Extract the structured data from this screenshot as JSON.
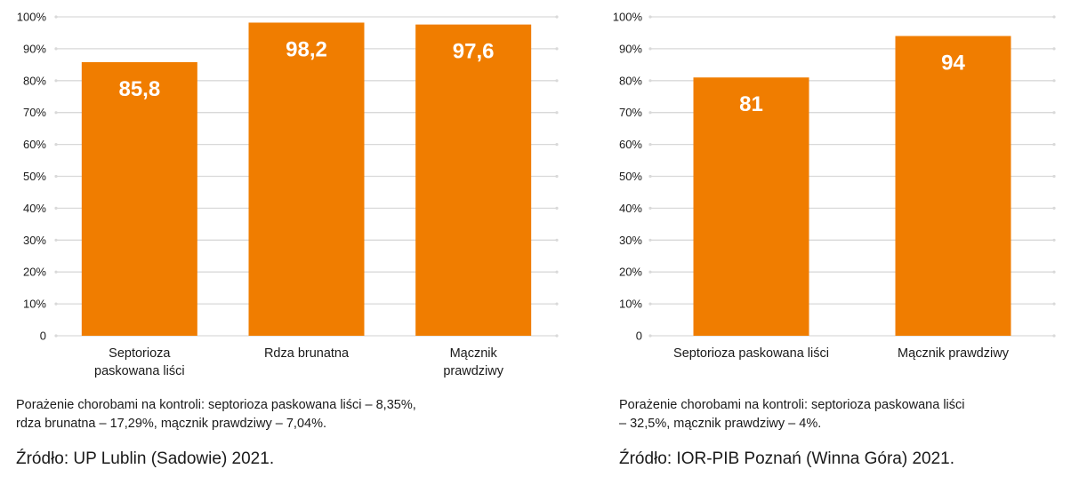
{
  "colors": {
    "bar": "#F07D00",
    "grid": "#D9D9D9",
    "label": "#FFFFFF"
  },
  "chart_data": [
    {
      "type": "bar",
      "categories": [
        [
          "Septorioza",
          "paskowana liści"
        ],
        [
          "Rdza brunatna"
        ],
        [
          "Mącznik",
          "prawdziwy"
        ]
      ],
      "values": [
        85.8,
        98.2,
        97.6
      ],
      "data_labels": [
        "85,8",
        "98,2",
        "97,6"
      ],
      "ylim": [
        0,
        100
      ],
      "yticks": [
        "0",
        "10%",
        "20%",
        "30%",
        "40%",
        "50%",
        "60%",
        "70%",
        "80%",
        "90%",
        "100%"
      ],
      "grid": true
    },
    {
      "type": "bar",
      "categories": [
        [
          "Septorioza paskowana liści"
        ],
        [
          "Mącznik prawdziwy"
        ]
      ],
      "values": [
        81,
        94
      ],
      "data_labels": [
        "81",
        "94"
      ],
      "ylim": [
        0,
        100
      ],
      "yticks": [
        "0",
        "10%",
        "20%",
        "30%",
        "40%",
        "50%",
        "60%",
        "70%",
        "80%",
        "90%",
        "100%"
      ],
      "grid": true
    }
  ],
  "notes": {
    "left": [
      "Porażenie chorobami na kontroli: septorioza paskowana liści – 8,35%,",
      "rdza brunatna – 17,29%, mącznik prawdziwy – 7,04%."
    ],
    "right": [
      "Porażenie chorobami na kontroli: septorioza paskowana liści",
      "– 32,5%, mącznik prawdziwy – 4%."
    ]
  },
  "sources": {
    "left": "Źródło: UP Lublin (Sadowie) 2021.",
    "right": "Źródło: IOR-PIB Poznań (Winna Góra) 2021."
  }
}
